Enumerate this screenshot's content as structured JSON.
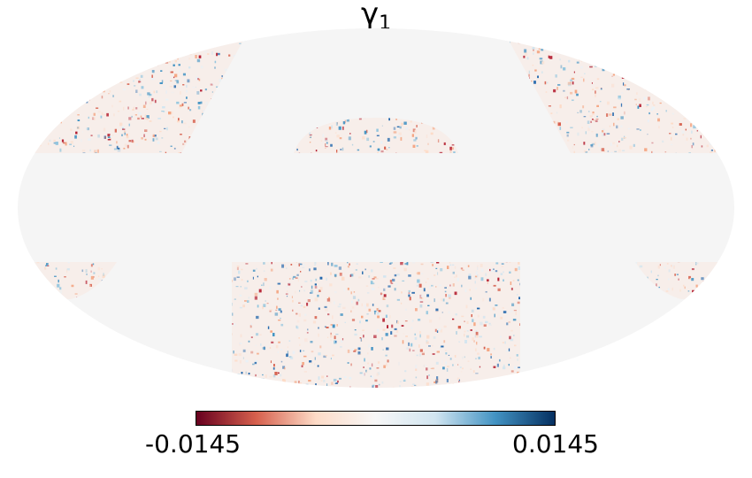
{
  "title": {
    "symbol": "γ",
    "subscript": "1"
  },
  "colorbar": {
    "min_label": "-0.0145",
    "max_label": "0.0145",
    "colormap": "RdBu",
    "colors": [
      "#67001f",
      "#d6604d",
      "#fddbc7",
      "#f7f7f7",
      "#d1e5f0",
      "#4393c3",
      "#053061"
    ]
  },
  "map": {
    "projection": "mollweide",
    "masked_color": "#f5f5f5",
    "field": "gamma_1 shear map"
  }
}
